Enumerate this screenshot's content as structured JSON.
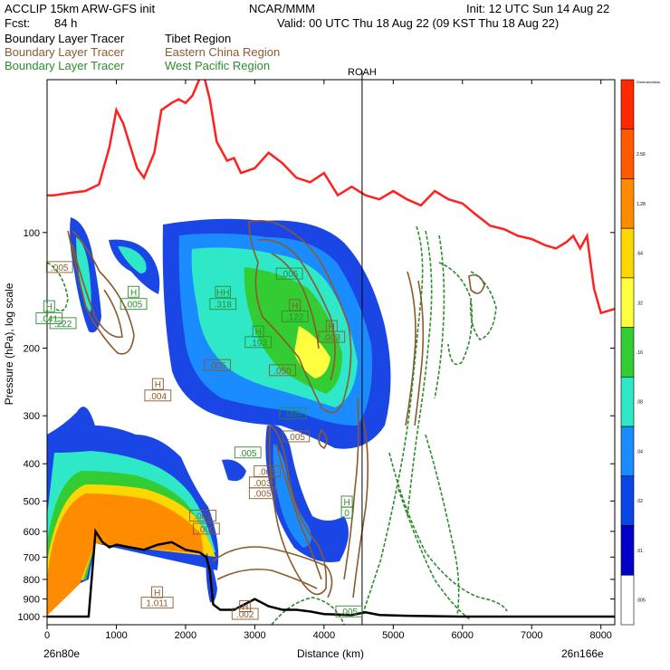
{
  "header": {
    "model": "ACCLIP 15km ARW-GFS init",
    "org": "NCAR/MMM",
    "init": "Init: 12 UTC Sun 14 Aug 22",
    "fcst_label": "Fcst:",
    "fcst_value": "84 h",
    "valid": "Valid: 00 UTC Thu 18 Aug 22 (09 KST Thu 18 Aug 22)"
  },
  "tracers": [
    {
      "name": "Boundary Layer Tracer",
      "region": "Tibet Region",
      "color": "#000000"
    },
    {
      "name": "Boundary Layer Tracer",
      "region": "Eastern China Region",
      "color": "#8b5a2b"
    },
    {
      "name": "Boundary Layer Tracer",
      "region": "West Pacific Region",
      "color": "#2e8b2e"
    }
  ],
  "marker_label": "ROAH",
  "chart_data": {
    "type": "cross-section contour",
    "xlabel": "Distance (km)",
    "ylabel": "Pressure (hPa), log scale",
    "xlim": [
      0,
      8200
    ],
    "ylim_hpa": [
      1050,
      40
    ],
    "x_ticks": [
      0,
      1000,
      2000,
      3000,
      4000,
      5000,
      6000,
      7000,
      8000
    ],
    "y_ticks": [
      100,
      200,
      300,
      400,
      500,
      600,
      700,
      800,
      900,
      1000
    ],
    "endpoints": {
      "start": "26n80e",
      "end": "26n166e"
    },
    "roah_distance_km": 4550,
    "colorbar": {
      "title": "Dimensionless",
      "levels": [
        "",
        "2.56",
        "1.28",
        ".64",
        ".32",
        ".16",
        ".08",
        ".04",
        ".02",
        ".01",
        ".005"
      ],
      "colors": [
        "#ff2a00",
        "#ff5a00",
        "#ff8c00",
        "#ffd700",
        "#ffff40",
        "#33cc33",
        "#2ee8c8",
        "#1a8cff",
        "#0a46e6",
        "#0000c8",
        "#ffffff"
      ]
    },
    "tropopause_km_hpa": [
      [
        0,
        80
      ],
      [
        100,
        80
      ],
      [
        300,
        79
      ],
      [
        550,
        78
      ],
      [
        750,
        75
      ],
      [
        900,
        60
      ],
      [
        1000,
        48
      ],
      [
        1100,
        52
      ],
      [
        1300,
        68
      ],
      [
        1400,
        72
      ],
      [
        1550,
        62
      ],
      [
        1650,
        48
      ],
      [
        1800,
        46
      ],
      [
        1900,
        45
      ],
      [
        2000,
        46
      ],
      [
        2100,
        44
      ],
      [
        2250,
        38
      ],
      [
        2350,
        45
      ],
      [
        2450,
        58
      ],
      [
        2600,
        65
      ],
      [
        2700,
        64
      ],
      [
        2800,
        70
      ],
      [
        3000,
        68
      ],
      [
        3200,
        62
      ],
      [
        3400,
        66
      ],
      [
        3600,
        72
      ],
      [
        3800,
        74
      ],
      [
        4000,
        70
      ],
      [
        4200,
        80
      ],
      [
        4400,
        76
      ],
      [
        4600,
        80
      ],
      [
        4800,
        82
      ],
      [
        5000,
        78
      ],
      [
        5200,
        82
      ],
      [
        5400,
        85
      ],
      [
        5600,
        78
      ],
      [
        5800,
        82
      ],
      [
        6000,
        84
      ],
      [
        6200,
        90
      ],
      [
        6400,
        96
      ],
      [
        6600,
        98
      ],
      [
        6800,
        102
      ],
      [
        7000,
        104
      ],
      [
        7200,
        108
      ],
      [
        7350,
        110
      ],
      [
        7500,
        106
      ],
      [
        7600,
        102
      ],
      [
        7700,
        110
      ],
      [
        7800,
        102
      ],
      [
        7850,
        120
      ],
      [
        7900,
        140
      ],
      [
        8000,
        162
      ],
      [
        8100,
        160
      ],
      [
        8200,
        158
      ]
    ],
    "terrain_km_hpa": [
      [
        0,
        1000
      ],
      [
        600,
        1000
      ],
      [
        700,
        600
      ],
      [
        800,
        640
      ],
      [
        900,
        660
      ],
      [
        1000,
        650
      ],
      [
        1200,
        660
      ],
      [
        1400,
        670
      ],
      [
        1600,
        650
      ],
      [
        1800,
        640
      ],
      [
        2000,
        670
      ],
      [
        2200,
        680
      ],
      [
        2300,
        700
      ],
      [
        2350,
        760
      ],
      [
        2400,
        930
      ],
      [
        2500,
        960
      ],
      [
        2700,
        960
      ],
      [
        3000,
        900
      ],
      [
        3200,
        940
      ],
      [
        3400,
        960
      ],
      [
        3600,
        960
      ],
      [
        3800,
        970
      ],
      [
        4000,
        985
      ],
      [
        4400,
        990
      ],
      [
        4600,
        975
      ],
      [
        4800,
        990
      ],
      [
        5200,
        995
      ],
      [
        6000,
        1000
      ],
      [
        7000,
        1000
      ],
      [
        8200,
        1000
      ]
    ],
    "labels": [
      {
        "x_km": 180,
        "p_hpa": 125,
        "text": ".005",
        "color": "#8b5a2b"
      },
      {
        "x_km": 30,
        "p_hpa": 158,
        "text": "H",
        "color": "#2e8b2e"
      },
      {
        "x_km": 30,
        "p_hpa": 170,
        "text": ".041",
        "color": "#2e8b2e"
      },
      {
        "x_km": 230,
        "p_hpa": 175,
        "text": ".222",
        "color": "#2e8b2e"
      },
      {
        "x_km": 1250,
        "p_hpa": 145,
        "text": "H",
        "color": "#2e8b2e"
      },
      {
        "x_km": 1250,
        "p_hpa": 156,
        "text": ".005",
        "color": "#2e8b2e"
      },
      {
        "x_km": 1600,
        "p_hpa": 252,
        "text": "H",
        "color": "#8b5a2b"
      },
      {
        "x_km": 1600,
        "p_hpa": 270,
        "text": ".004",
        "color": "#8b5a2b"
      },
      {
        "x_km": 2540,
        "p_hpa": 145,
        "text": "HH",
        "color": "#2e8b2e"
      },
      {
        "x_km": 2540,
        "p_hpa": 156,
        "text": ".318",
        "color": "#2e8b2e"
      },
      {
        "x_km": 3050,
        "p_hpa": 184,
        "text": "H",
        "color": "#2e8b2e"
      },
      {
        "x_km": 3050,
        "p_hpa": 196,
        "text": ".193",
        "color": "#2e8b2e"
      },
      {
        "x_km": 2460,
        "p_hpa": 225,
        "text": ".005",
        "color": "#8b5a2b"
      },
      {
        "x_km": 3500,
        "p_hpa": 130,
        "text": ".005",
        "color": "#2e8b2e"
      },
      {
        "x_km": 3580,
        "p_hpa": 157,
        "text": "H",
        "color": "#8b5a2b"
      },
      {
        "x_km": 3580,
        "p_hpa": 168,
        "text": ".122",
        "color": "#2e8b2e"
      },
      {
        "x_km": 4110,
        "p_hpa": 178,
        "text": "H",
        "color": "#8b5a2b"
      },
      {
        "x_km": 4110,
        "p_hpa": 190,
        "text": ".003",
        "color": "#8b5a2b"
      },
      {
        "x_km": 3400,
        "p_hpa": 232,
        "text": ".050",
        "color": "#8b5a2b"
      },
      {
        "x_km": 3550,
        "p_hpa": 300,
        "text": ".005",
        "color": "#2e8b2e"
      },
      {
        "x_km": 3600,
        "p_hpa": 345,
        "text": ".005",
        "color": "#8b5a2b"
      },
      {
        "x_km": 2900,
        "p_hpa": 380,
        "text": ".005",
        "color": "#2e8b2e"
      },
      {
        "x_km": 3180,
        "p_hpa": 425,
        "text": ".005",
        "color": "#8b5a2b"
      },
      {
        "x_km": 3110,
        "p_hpa": 455,
        "text": ".003",
        "color": "#8b5a2b"
      },
      {
        "x_km": 3110,
        "p_hpa": 485,
        "text": ".005",
        "color": "#8b5a2b"
      },
      {
        "x_km": 2250,
        "p_hpa": 555,
        "text": ".003",
        "color": "#8b5a2b"
      },
      {
        "x_km": 2300,
        "p_hpa": 600,
        "text": ".000",
        "color": "#8b5a2b"
      },
      {
        "x_km": 4330,
        "p_hpa": 510,
        "text": "H",
        "color": "#2e8b2e"
      },
      {
        "x_km": 4330,
        "p_hpa": 545,
        "text": "0",
        "color": "#2e8b2e"
      },
      {
        "x_km": 1590,
        "p_hpa": 878,
        "text": "H",
        "color": "#8b5a2b"
      },
      {
        "x_km": 1590,
        "p_hpa": 935,
        "text": "1.011",
        "color": "#8b5a2b"
      },
      {
        "x_km": 2860,
        "p_hpa": 955,
        "text": "H",
        "color": "#8b5a2b"
      },
      {
        "x_km": 2860,
        "p_hpa": 1000,
        "text": ".002",
        "color": "#8b5a2b"
      },
      {
        "x_km": 4360,
        "p_hpa": 985,
        "text": ".005",
        "color": "#2e8b2e"
      }
    ]
  }
}
